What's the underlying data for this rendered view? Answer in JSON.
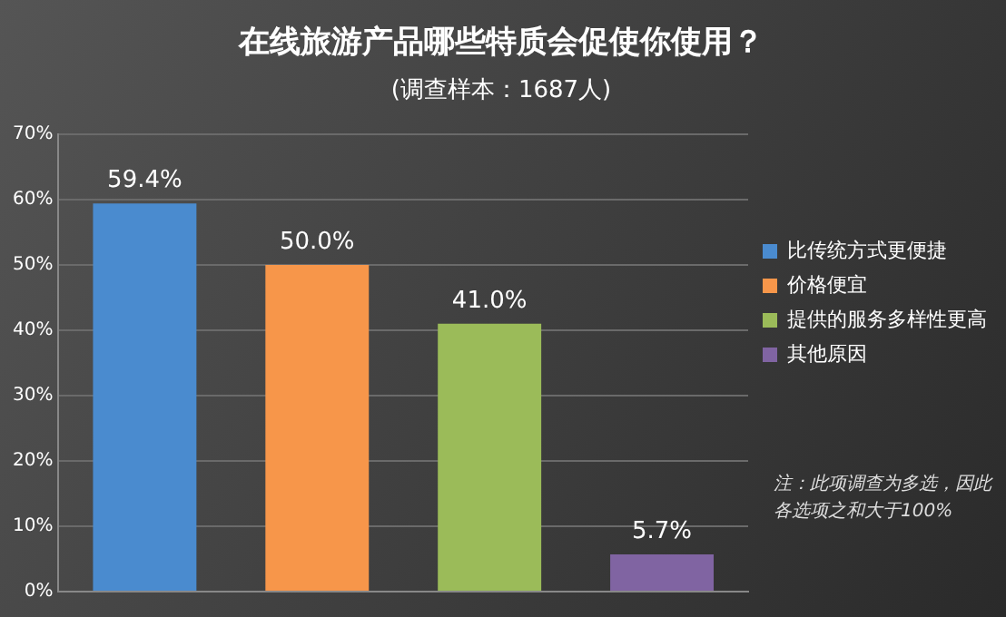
{
  "chart_data": {
    "type": "bar",
    "title": "在线旅游产品哪些特质会促使你使用？",
    "subtitle": "(调查样本：1687人)",
    "categories": [
      null,
      null,
      null,
      null
    ],
    "series": [
      {
        "name": "比传统方式更便捷",
        "color": "#4a8bcf",
        "values": [
          59.4,
          null,
          null,
          null
        ],
        "value_labels": [
          "59.4%",
          null,
          null,
          null
        ]
      },
      {
        "name": "价格便宜",
        "color": "#f7964a",
        "values": [
          null,
          50.0,
          null,
          null
        ],
        "value_labels": [
          null,
          "50.0%",
          null,
          null
        ]
      },
      {
        "name": "提供的服务多样性更高",
        "color": "#9bbb59",
        "values": [
          null,
          null,
          41.0,
          null
        ],
        "value_labels": [
          null,
          null,
          "41.0%",
          null
        ]
      },
      {
        "name": "其他原因",
        "color": "#8064a2",
        "values": [
          null,
          null,
          null,
          5.7
        ],
        "value_labels": [
          null,
          null,
          null,
          "5.7%"
        ]
      }
    ],
    "ylim": [
      0,
      70
    ],
    "yticks": [
      {
        "value": 0,
        "label": "0%"
      },
      {
        "value": 10,
        "label": "10%"
      },
      {
        "value": 20,
        "label": "20%"
      },
      {
        "value": 30,
        "label": "30%"
      },
      {
        "value": 40,
        "label": "40%"
      },
      {
        "value": 50,
        "label": "50%"
      },
      {
        "value": 60,
        "label": "60%"
      },
      {
        "value": 70,
        "label": "70%"
      }
    ],
    "grid": "y",
    "legend": "right",
    "tick_labels": "y",
    "annotations": [
      "注：此项调查为多选，因此各选项之和大于100%"
    ]
  }
}
